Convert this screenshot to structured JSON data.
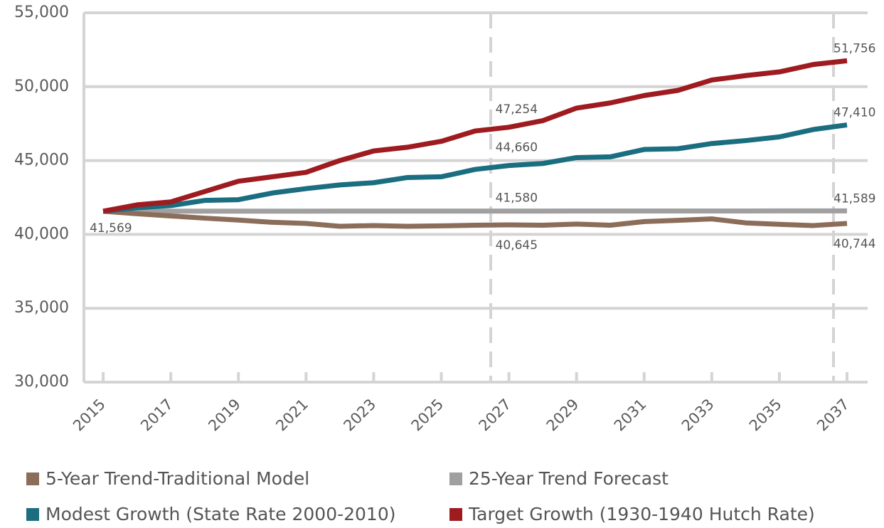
{
  "chart_data": {
    "type": "line",
    "x": [
      2015,
      2016,
      2017,
      2018,
      2019,
      2020,
      2021,
      2022,
      2023,
      2024,
      2025,
      2026,
      2027,
      2028,
      2029,
      2030,
      2031,
      2032,
      2033,
      2034,
      2035,
      2036,
      2037
    ],
    "xlim": [
      2014.43,
      2037.61
    ],
    "xticks": [
      2015,
      2017,
      2019,
      2021,
      2023,
      2025,
      2027,
      2029,
      2031,
      2033,
      2035,
      2037
    ],
    "ylim": [
      30000,
      55000
    ],
    "yticks": [
      {
        "value": 30000,
        "label": "30,000"
      },
      {
        "value": 35000,
        "label": "35,000"
      },
      {
        "value": 40000,
        "label": "40,000"
      },
      {
        "value": 45000,
        "label": "45,000"
      },
      {
        "value": 50000,
        "label": "50,000"
      },
      {
        "value": 55000,
        "label": "55,000"
      }
    ],
    "grid": true,
    "series": [
      {
        "name": "5-Year Trend-Traditional Model",
        "color": "#8c6d5a",
        "values": [
          41569,
          41400,
          41250,
          41100,
          40970,
          40820,
          40740,
          40550,
          40600,
          40550,
          40580,
          40620,
          40645,
          40620,
          40700,
          40620,
          40870,
          40950,
          41050,
          40780,
          40680,
          40600,
          40744
        ],
        "value_labels": [
          "41,569",
          null,
          null,
          null,
          null,
          null,
          null,
          null,
          null,
          null,
          null,
          null,
          "40,645",
          null,
          null,
          null,
          null,
          null,
          null,
          null,
          null,
          null,
          "40,744"
        ]
      },
      {
        "name": "25-Year Trend Forecast",
        "color": "#a0a0a0",
        "values": [
          41569,
          41570,
          41571,
          41572,
          41573,
          41574,
          41575,
          41576,
          41577,
          41578,
          41579,
          41579,
          41580,
          41581,
          41582,
          41583,
          41584,
          41585,
          41586,
          41587,
          41588,
          41588,
          41589
        ],
        "value_labels": [
          null,
          null,
          null,
          null,
          null,
          null,
          null,
          null,
          null,
          null,
          null,
          null,
          "41,580",
          null,
          null,
          null,
          null,
          null,
          null,
          null,
          null,
          null,
          "41,589"
        ]
      },
      {
        "name": "Modest Growth (State Rate 2000-2010)",
        "color": "#1a6e80",
        "values": [
          41569,
          41800,
          41950,
          42300,
          42350,
          42800,
          43100,
          43350,
          43500,
          43850,
          43900,
          44400,
          44660,
          44800,
          45200,
          45250,
          45750,
          45800,
          46150,
          46350,
          46600,
          47100,
          47410
        ],
        "value_labels": [
          null,
          null,
          null,
          null,
          null,
          null,
          null,
          null,
          null,
          null,
          null,
          null,
          "44,660",
          null,
          null,
          null,
          null,
          null,
          null,
          null,
          null,
          null,
          "47,410"
        ]
      },
      {
        "name": "Target Growth (1930-1940 Hutch Rate)",
        "color": "#9e1b20",
        "values": [
          41569,
          42000,
          42200,
          42900,
          43600,
          43900,
          44200,
          45000,
          45650,
          45900,
          46300,
          47000,
          47254,
          47700,
          48550,
          48900,
          49400,
          49750,
          50450,
          50750,
          51000,
          51500,
          51756
        ],
        "value_labels": [
          null,
          null,
          null,
          null,
          null,
          null,
          null,
          null,
          null,
          null,
          null,
          null,
          "47,254",
          null,
          null,
          null,
          null,
          null,
          null,
          null,
          null,
          null,
          "51,756"
        ]
      }
    ]
  }
}
